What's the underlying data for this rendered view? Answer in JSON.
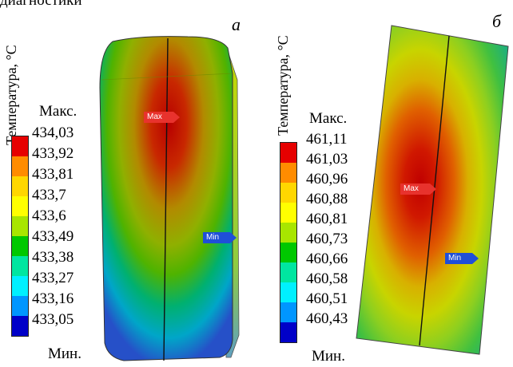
{
  "top_text": "диагностики",
  "panels": [
    {
      "letter": "а",
      "vertical_label": "Температура, °С",
      "max_label": "Макс.",
      "min_label": "Мин.",
      "values": [
        "434,03",
        "433,92",
        "433,81",
        "433,7",
        "433,6",
        "433,49",
        "433,38",
        "433,27",
        "433,16",
        "433,05"
      ],
      "marker_max": "Max",
      "marker_min": "Min"
    },
    {
      "letter": "б",
      "vertical_label": "Температура, °С",
      "max_label": "Макс.",
      "min_label": "Мин.",
      "values": [
        "461,11",
        "461,03",
        "460,96",
        "460,88",
        "460,81",
        "460,73",
        "460,66",
        "460,58",
        "460,51",
        "460,43"
      ],
      "marker_max": "Max",
      "marker_min": "Min"
    }
  ],
  "scale_colors": [
    "#e60000",
    "#ff8c00",
    "#ffd700",
    "#ffff00",
    "#a8e600",
    "#00c800",
    "#00e6a0",
    "#00f0ff",
    "#0096ff",
    "#0000c8"
  ]
}
